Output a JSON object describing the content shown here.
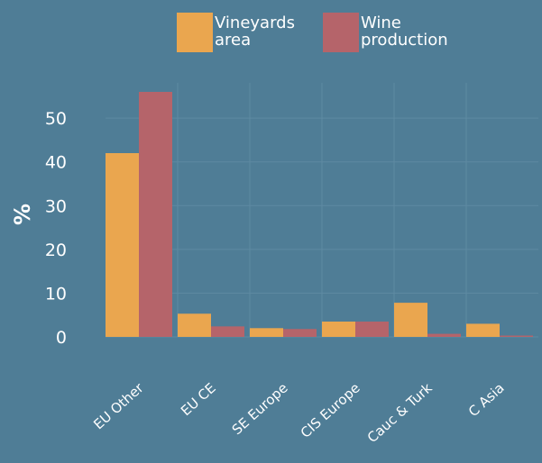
{
  "chart_data": {
    "type": "bar",
    "title": "",
    "xlabel": "",
    "ylabel": "%",
    "categories": [
      "EU Other",
      "EU CE",
      "SE Europe",
      "CIS Europe",
      "Cauc & Turk",
      "C Asia"
    ],
    "series": [
      {
        "name": "Vineyards area",
        "legend_lines": [
          "Vineyards",
          "area"
        ],
        "color": "#eaa64f",
        "values": [
          42,
          5.3,
          2.0,
          3.5,
          7.8,
          3.0
        ]
      },
      {
        "name": "Wine production",
        "legend_lines": [
          "Wine",
          "production"
        ],
        "color": "#b5646a",
        "values": [
          56,
          2.4,
          1.8,
          3.5,
          0.7,
          0.3
        ]
      }
    ],
    "ylim": [
      0,
      56
    ],
    "yticks": [
      0,
      10,
      20,
      30,
      40,
      50
    ],
    "grid": true,
    "legend": "top-center"
  }
}
